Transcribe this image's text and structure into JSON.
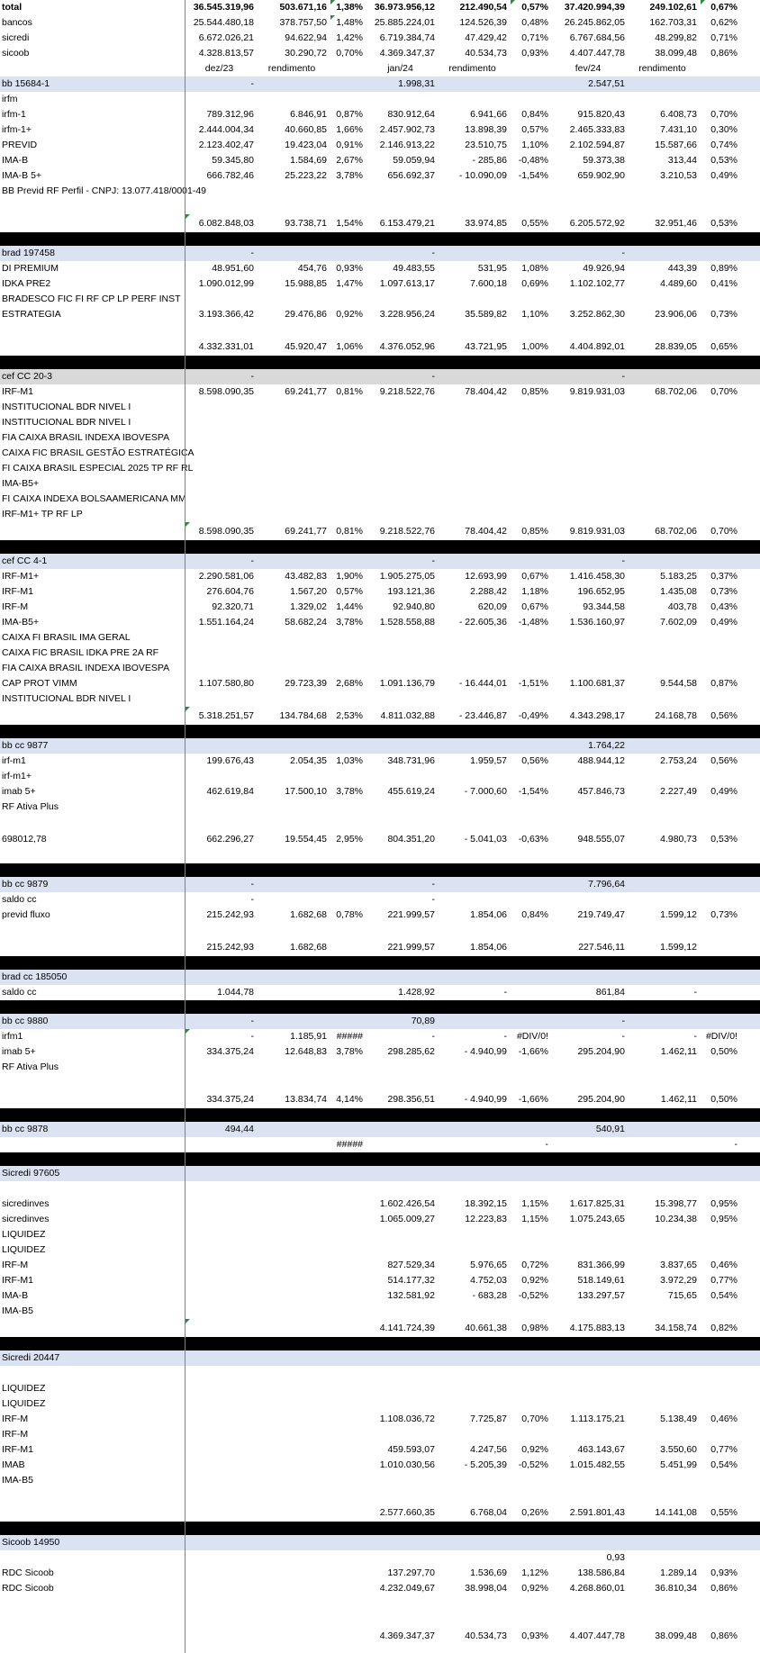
{
  "sheet_rows": [
    {
      "k": "r",
      "bold": true,
      "cells": [
        "total",
        "36.545.319,96",
        "503.671,16",
        "1,38%",
        "36.973.956,12",
        "212.490,54",
        "0,57%",
        "37.420.994,39",
        "249.102,61",
        "0,67%"
      ]
    },
    {
      "k": "r",
      "cells": [
        " bancos",
        "25.544.480,18",
        "378.757,50",
        "1,48%",
        "25.885.224,01",
        "124.526,39",
        "0,48%",
        "26.245.862,05",
        "162.703,31",
        "0,62%"
      ]
    },
    {
      "k": "r",
      "cells": [
        " sicredi",
        "6.672.026,21",
        "94.622,94",
        "1,42%",
        "6.719.384,74",
        "47.429,42",
        "0,71%",
        "6.767.684,56",
        "48.299,82",
        "0,71%"
      ]
    },
    {
      "k": "r",
      "cells": [
        " sicoob",
        "4.328.813,57",
        "30.290,72",
        "0,70%",
        "4.369.347,37",
        "40.534,73",
        "0,93%",
        "4.407.447,78",
        "38.099,48",
        "0,86%"
      ]
    },
    {
      "k": "h",
      "cells": [
        "",
        "dez/23",
        "rendimento",
        "",
        "jan/24",
        "rendimento",
        "",
        "fev/24",
        "rendimento",
        ""
      ]
    },
    {
      "k": "a",
      "cells": [
        "bb 15684-1",
        "-",
        "",
        "",
        "1.998,31",
        "",
        "",
        "2.547,51",
        "",
        ""
      ]
    },
    {
      "k": "r",
      "cells": [
        "irfm",
        "",
        "",
        "",
        "",
        "",
        "",
        "",
        "",
        ""
      ]
    },
    {
      "k": "r",
      "cells": [
        "irfm-1",
        "789.312,96",
        "6.846,91",
        "0,87%",
        "830.912,64",
        "6.941,66",
        "0,84%",
        "915.820,43",
        "6.408,73",
        "0,70%"
      ]
    },
    {
      "k": "r",
      "cells": [
        "irfm-1+",
        "2.444.004,34",
        "40.660,85",
        "1,66%",
        "2.457.902,73",
        "13.898,39",
        "0,57%",
        "2.465.333,83",
        "7.431,10",
        "0,30%"
      ]
    },
    {
      "k": "r",
      "cells": [
        "PREVID",
        "2.123.402,47",
        "19.423,04",
        "0,91%",
        "2.146.913,22",
        "23.510,75",
        "1,10%",
        "2.102.594,87",
        "15.587,66",
        "0,74%"
      ]
    },
    {
      "k": "r",
      "cells": [
        "IMA-B",
        "59.345,80",
        "1.584,69",
        "2,67%",
        "59.059,94",
        "-          285,86",
        "-0,48%",
        "59.373,38",
        "313,44",
        "0,53%"
      ]
    },
    {
      "k": "r",
      "cells": [
        "IMA-B 5+",
        "666.782,46",
        "25.223,22",
        "3,78%",
        "656.692,37",
        "-     10.090,09",
        "-1,54%",
        "659.902,90",
        "3.210,53",
        "0,49%"
      ]
    },
    {
      "k": "r",
      "cells": [
        "BB Previd RF Perfil - CNPJ: 13.077.418/0001-49",
        "",
        "",
        "",
        "",
        "",
        "",
        "",
        "",
        ""
      ]
    },
    {
      "k": "g"
    },
    {
      "k": "t",
      "tri": true,
      "cells": [
        "",
        "6.082.848,03",
        "93.738,71",
        "1,54%",
        "6.153.479,21",
        "33.974,85",
        "0,55%",
        "6.205.572,92",
        "32.951,46",
        "0,53%"
      ]
    },
    {
      "k": "b"
    },
    {
      "k": "a",
      "cells": [
        "brad 197458",
        "-",
        "",
        "",
        "-",
        "",
        "",
        "-",
        "",
        ""
      ]
    },
    {
      "k": "r",
      "cells": [
        "DI PREMIUM",
        "48.951,60",
        "454,76",
        "0,93%",
        "49.483,55",
        "531,95",
        "1,08%",
        "49.926,94",
        "443,39",
        "0,89%"
      ]
    },
    {
      "k": "r",
      "cells": [
        "IDKA PRE2",
        "1.090.012,99",
        "15.988,85",
        "1,47%",
        "1.097.613,17",
        "7.600,18",
        "0,69%",
        "1.102.102,77",
        "4.489,60",
        "0,41%"
      ]
    },
    {
      "k": "r",
      "cells": [
        "BRADESCO FIC FI RF CP LP PERF INST",
        "",
        "",
        "",
        "",
        "",
        "",
        "",
        "",
        ""
      ]
    },
    {
      "k": "r",
      "cells": [
        "ESTRATEGIA",
        "3.193.366,42",
        "29.476,86",
        "0,92%",
        "3.228.956,24",
        "35.589,82",
        "1,10%",
        "3.252.862,30",
        "23.906,06",
        "0,73%"
      ]
    },
    {
      "k": "g"
    },
    {
      "k": "t",
      "cells": [
        "",
        "4.332.331,01",
        "45.920,47",
        "1,06%",
        "4.376.052,96",
        "43.721,95",
        "1,00%",
        "4.404.892,01",
        "28.839,05",
        "0,65%"
      ]
    },
    {
      "k": "b"
    },
    {
      "k": "s",
      "cells": [
        "cef CC 20-3",
        "-",
        "",
        "",
        "-",
        "",
        "",
        "-",
        "",
        ""
      ]
    },
    {
      "k": "r",
      "cells": [
        "IRF-M1",
        "8.598.090,35",
        "69.241,77",
        "0,81%",
        "9.218.522,76",
        "78.404,42",
        "0,85%",
        "9.819.931,03",
        "68.702,06",
        "0,70%"
      ]
    },
    {
      "k": "r",
      "cells": [
        "INSTITUCIONAL BDR NIVEL I",
        "",
        "",
        "",
        "",
        "",
        "",
        "",
        "",
        ""
      ]
    },
    {
      "k": "r",
      "cells": [
        "INSTITUCIONAL BDR NIVEL I",
        "",
        "",
        "",
        "",
        "",
        "",
        "",
        "",
        ""
      ]
    },
    {
      "k": "r",
      "cells": [
        "FIA CAIXA BRASIL INDEXA IBOVESPA",
        "",
        "",
        "",
        "",
        "",
        "",
        "",
        "",
        ""
      ]
    },
    {
      "k": "r",
      "cells": [
        "CAIXA FIC BRASIL GESTÃO ESTRATÉGICA",
        "",
        "",
        "",
        "",
        "",
        "",
        "",
        "",
        ""
      ]
    },
    {
      "k": "r",
      "cells": [
        "FI CAIXA BRASIL ESPECIAL 2025 TP RF RL",
        "",
        "",
        "",
        "",
        "",
        "",
        "",
        "",
        ""
      ]
    },
    {
      "k": "r",
      "cells": [
        "IMA-B5+",
        "",
        "",
        "",
        "",
        "",
        "",
        "",
        "",
        ""
      ]
    },
    {
      "k": "r",
      "cells": [
        "FI CAIXA INDEXA BOLSAAMERICANA MM",
        "",
        "",
        "",
        "",
        "",
        "",
        "",
        "",
        ""
      ]
    },
    {
      "k": "r",
      "cells": [
        "IRF-M1+ TP RF LP",
        "",
        "",
        "",
        "",
        "",
        "",
        "",
        "",
        ""
      ]
    },
    {
      "k": "t",
      "tri": true,
      "cells": [
        "",
        "8.598.090,35",
        "69.241,77",
        "0,81%",
        "9.218.522,76",
        "78.404,42",
        "0,85%",
        "9.819.931,03",
        "68.702,06",
        "0,70%"
      ]
    },
    {
      "k": "b"
    },
    {
      "k": "a",
      "cells": [
        "cef CC 4-1",
        "-",
        "",
        "",
        "-",
        "",
        "",
        "-",
        "",
        ""
      ]
    },
    {
      "k": "r",
      "cells": [
        "IRF-M1+",
        "2.290.581,06",
        "43.482,83",
        "1,90%",
        "1.905.275,05",
        "12.693,99",
        "0,67%",
        "1.416.458,30",
        "5.183,25",
        "0,37%"
      ]
    },
    {
      "k": "r",
      "cells": [
        "IRF-M1",
        "276.604,76",
        "1.567,20",
        "0,57%",
        "193.121,36",
        "2.288,42",
        "1,18%",
        "196.652,95",
        "1.435,08",
        "0,73%"
      ]
    },
    {
      "k": "r",
      "cells": [
        "IRF-M",
        "92.320,71",
        "1.329,02",
        "1,44%",
        "92.940,80",
        "620,09",
        "0,67%",
        "93.344,58",
        "403,78",
        "0,43%"
      ]
    },
    {
      "k": "r",
      "cells": [
        "IMA-B5+",
        "1.551.164,24",
        "58.682,24",
        "3,78%",
        "1.528.558,88",
        "-     22.605,36",
        "-1,48%",
        "1.536.160,97",
        "7.602,09",
        "0,49%"
      ]
    },
    {
      "k": "r",
      "cells": [
        "CAIXA FI BRASIL IMA GERAL",
        "",
        "",
        "",
        "",
        "",
        "",
        "",
        "",
        ""
      ]
    },
    {
      "k": "r",
      "cells": [
        "CAIXA FIC BRASIL IDKA PRE 2A RF",
        "",
        "",
        "",
        "",
        "",
        "",
        "",
        "",
        ""
      ]
    },
    {
      "k": "r",
      "cells": [
        "FIA CAIXA BRASIL INDEXA IBOVESPA",
        "",
        "",
        "",
        "",
        "",
        "",
        "",
        "",
        ""
      ]
    },
    {
      "k": "r",
      "cells": [
        "CAP PROT VIMM",
        "1.107.580,80",
        "29.723,39",
        "2,68%",
        "1.091.136,79",
        "-     16.444,01",
        "-1,51%",
        "1.100.681,37",
        "9.544,58",
        "0,87%"
      ]
    },
    {
      "k": "r",
      "cells": [
        "INSTITUCIONAL BDR NIVEL I",
        "",
        "",
        "",
        "",
        "",
        "",
        "",
        "",
        ""
      ]
    },
    {
      "k": "t",
      "tri": true,
      "cells": [
        "",
        "5.318.251,57",
        "134.784,68",
        "2,53%",
        "4.811.032,88",
        "-     23.446,87",
        "-0,49%",
        "4.343.298,17",
        "24.168,78",
        "0,56%"
      ]
    },
    {
      "k": "b"
    },
    {
      "k": "a",
      "cells": [
        "bb cc 9877",
        "",
        "",
        "",
        "",
        "",
        "",
        "1.764,22",
        "",
        ""
      ]
    },
    {
      "k": "r",
      "cells": [
        "irf-m1",
        "199.676,43",
        "2.054,35",
        "1,03%",
        "348.731,96",
        "1.959,57",
        "0,56%",
        "488.944,12",
        "2.753,24",
        "0,56%"
      ]
    },
    {
      "k": "r",
      "cells": [
        "irf-m1+",
        "",
        "",
        "",
        "",
        "",
        "",
        "",
        "",
        ""
      ]
    },
    {
      "k": "r",
      "cells": [
        "imab 5+",
        "462.619,84",
        "17.500,10",
        "3,78%",
        "455.619,24",
        "-       7.000,60",
        "-1,54%",
        "457.846,73",
        "2.227,49",
        "0,49%"
      ]
    },
    {
      "k": "r",
      "cells": [
        "RF Ativa Plus",
        "",
        "",
        "",
        "",
        "",
        "",
        "",
        "",
        ""
      ]
    },
    {
      "k": "g"
    },
    {
      "k": "t",
      "cells": [
        "698012,78",
        "662.296,27",
        "19.554,45",
        "2,95%",
        "804.351,20",
        "-       5.041,03",
        "-0,63%",
        "948.555,07",
        "4.980,73",
        "0,53%"
      ]
    },
    {
      "k": "g"
    },
    {
      "k": "b"
    },
    {
      "k": "a",
      "cells": [
        "bb cc 9879",
        "-",
        "",
        "",
        "-",
        "",
        "",
        "7.796,64",
        "",
        ""
      ]
    },
    {
      "k": "r",
      "cells": [
        "saldo cc",
        "-",
        "",
        "",
        "-",
        "",
        "",
        "",
        "",
        ""
      ]
    },
    {
      "k": "r",
      "cells": [
        "previd fluxo",
        "215.242,93",
        "1.682,68",
        "0,78%",
        "221.999,57",
        "1.854,06",
        "0,84%",
        "219.749,47",
        "1.599,12",
        "0,73%"
      ]
    },
    {
      "k": "g"
    },
    {
      "k": "t",
      "cells": [
        "",
        "215.242,93",
        "1.682,68",
        "",
        "221.999,57",
        "1.854,06",
        "",
        "227.546,11",
        "1.599,12",
        ""
      ]
    },
    {
      "k": "b"
    },
    {
      "k": "a",
      "cells": [
        "brad cc 185050",
        "",
        "",
        "",
        "",
        "",
        "",
        "",
        "",
        ""
      ]
    },
    {
      "k": "r",
      "cells": [
        "saldo cc",
        "1.044,78",
        "",
        "",
        "1.428,92",
        "-",
        "",
        "861,84",
        "-",
        ""
      ]
    },
    {
      "k": "b"
    },
    {
      "k": "a",
      "cells": [
        "bb cc 9880",
        "-",
        "",
        "",
        "70,89",
        "",
        "",
        "-",
        "",
        ""
      ]
    },
    {
      "k": "r",
      "tri": true,
      "cells": [
        "irfm1",
        "-",
        "1.185,91",
        "#####",
        "-",
        "-",
        "#DIV/0!",
        "-",
        "-",
        "#DIV/0!"
      ]
    },
    {
      "k": "r",
      "cells": [
        "imab 5+",
        "334.375,24",
        "12.648,83",
        "3,78%",
        "298.285,62",
        "-       4.940,99",
        "-1,66%",
        "295.204,90",
        "1.462,11",
        "0,50%"
      ]
    },
    {
      "k": "r",
      "cells": [
        "RF Ativa Plus",
        "",
        "",
        "",
        "",
        "",
        "",
        "",
        "",
        ""
      ]
    },
    {
      "k": "g"
    },
    {
      "k": "t",
      "cells": [
        "",
        "334.375,24",
        "13.834,74",
        "4,14%",
        "298.356,51",
        "-       4.940,99",
        "-1,66%",
        "295.204,90",
        "1.462,11",
        "0,50%"
      ]
    },
    {
      "k": "b"
    },
    {
      "k": "a",
      "cells": [
        "bb cc 9878",
        "494,44",
        "",
        "",
        "",
        "",
        "",
        "540,91",
        "",
        ""
      ]
    },
    {
      "k": "r",
      "cells": [
        "",
        "",
        "",
        "#####",
        "",
        "",
        "-",
        "",
        "",
        "-"
      ]
    },
    {
      "k": "b"
    },
    {
      "k": "a",
      "cells": [
        "Sicredi 97605",
        "",
        "",
        "",
        "",
        "",
        "",
        "",
        "",
        ""
      ]
    },
    {
      "k": "g"
    },
    {
      "k": "r",
      "cells": [
        "sicredinves",
        "",
        "",
        "",
        "1.602.426,54",
        "18.392,15",
        "1,15%",
        "1.617.825,31",
        "15.398,77",
        "0,95%"
      ]
    },
    {
      "k": "r",
      "cells": [
        "sicredinves",
        "",
        "",
        "",
        "1.065.009,27",
        "12.223,83",
        "1,15%",
        "1.075.243,65",
        "10.234,38",
        "0,95%"
      ]
    },
    {
      "k": "r",
      "cells": [
        "LIQUIDEZ",
        "",
        "",
        "",
        "",
        "",
        "",
        "",
        "",
        ""
      ]
    },
    {
      "k": "r",
      "cells": [
        "LIQUIDEZ",
        "",
        "",
        "",
        "",
        "",
        "",
        "",
        "",
        ""
      ]
    },
    {
      "k": "r",
      "cells": [
        "IRF-M",
        "",
        "",
        "",
        "827.529,34",
        "5.976,65",
        "0,72%",
        "831.366,99",
        "3.837,65",
        "0,46%"
      ]
    },
    {
      "k": "r",
      "cells": [
        "IRF-M1",
        "",
        "",
        "",
        "514.177,32",
        "4.752,03",
        "0,92%",
        "518.149,61",
        "3.972,29",
        "0,77%"
      ]
    },
    {
      "k": "r",
      "cells": [
        "IMA-B",
        "",
        "",
        "",
        "132.581,92",
        "-          683,28",
        "-0,52%",
        "133.297,57",
        "715,65",
        "0,54%"
      ]
    },
    {
      "k": "r",
      "cells": [
        "IMA-B5",
        "",
        "",
        "",
        "",
        "",
        "",
        "",
        "",
        ""
      ]
    },
    {
      "k": "t",
      "tri": true,
      "cells": [
        "",
        "",
        "",
        "",
        "4.141.724,39",
        "40.661,38",
        "0,98%",
        "4.175.883,13",
        "34.158,74",
        "0,82%"
      ]
    },
    {
      "k": "b"
    },
    {
      "k": "a",
      "cells": [
        "Sicredi 20447",
        "",
        "",
        "",
        "",
        "",
        "",
        "",
        "",
        ""
      ]
    },
    {
      "k": "g"
    },
    {
      "k": "r",
      "cells": [
        "LIQUIDEZ",
        "",
        "",
        "",
        "",
        "",
        "",
        "",
        "",
        ""
      ]
    },
    {
      "k": "r",
      "cells": [
        "LIQUIDEZ",
        "",
        "",
        "",
        "",
        "",
        "",
        "",
        "",
        ""
      ]
    },
    {
      "k": "r",
      "cells": [
        "IRF-M",
        "",
        "",
        "",
        "1.108.036,72",
        "7.725,87",
        "0,70%",
        "1.113.175,21",
        "5.138,49",
        "0,46%"
      ]
    },
    {
      "k": "r",
      "cells": [
        "IRF-M",
        "",
        "",
        "",
        "",
        "",
        "",
        "",
        "",
        ""
      ]
    },
    {
      "k": "r",
      "cells": [
        "IRF-M1",
        "",
        "",
        "",
        "459.593,07",
        "4.247,56",
        "0,92%",
        "463.143,67",
        "3.550,60",
        "0,77%"
      ]
    },
    {
      "k": "r",
      "cells": [
        "IMAB",
        "",
        "",
        "",
        "1.010.030,56",
        "-       5.205,39",
        "-0,52%",
        "1.015.482,55",
        "5.451,99",
        "0,54%"
      ]
    },
    {
      "k": "r",
      "cells": [
        "IMA-B5",
        "",
        "",
        "",
        "",
        "",
        "",
        "",
        "",
        ""
      ]
    },
    {
      "k": "g"
    },
    {
      "k": "t",
      "cells": [
        "",
        "",
        "",
        "",
        "2.577.660,35",
        "6.768,04",
        "0,26%",
        "2.591.801,43",
        "14.141,08",
        "0,55%"
      ]
    },
    {
      "k": "b"
    },
    {
      "k": "a",
      "cells": [
        "Sicoob 14950",
        "",
        "",
        "",
        "",
        "",
        "",
        "",
        "",
        ""
      ]
    },
    {
      "k": "r",
      "cells": [
        "",
        "",
        "",
        "",
        "",
        "",
        "",
        "0,93",
        "",
        ""
      ]
    },
    {
      "k": "r",
      "cells": [
        "RDC Sicoob",
        "",
        "",
        "",
        "137.297,70",
        "1.536,69",
        "1,12%",
        "138.586,84",
        "1.289,14",
        "0,93%"
      ]
    },
    {
      "k": "r",
      "cells": [
        "RDC Sicoob",
        "",
        "",
        "",
        "4.232.049,67",
        "38.998,04",
        "0,92%",
        "4.268.860,01",
        "36.810,34",
        "0,86%"
      ]
    },
    {
      "k": "g"
    },
    {
      "k": "g"
    },
    {
      "k": "t",
      "cells": [
        "",
        "",
        "",
        "",
        "4.369.347,37",
        "40.534,73",
        "0,93%",
        "4.407.447,78",
        "38.099,48",
        "0,86%"
      ]
    }
  ]
}
